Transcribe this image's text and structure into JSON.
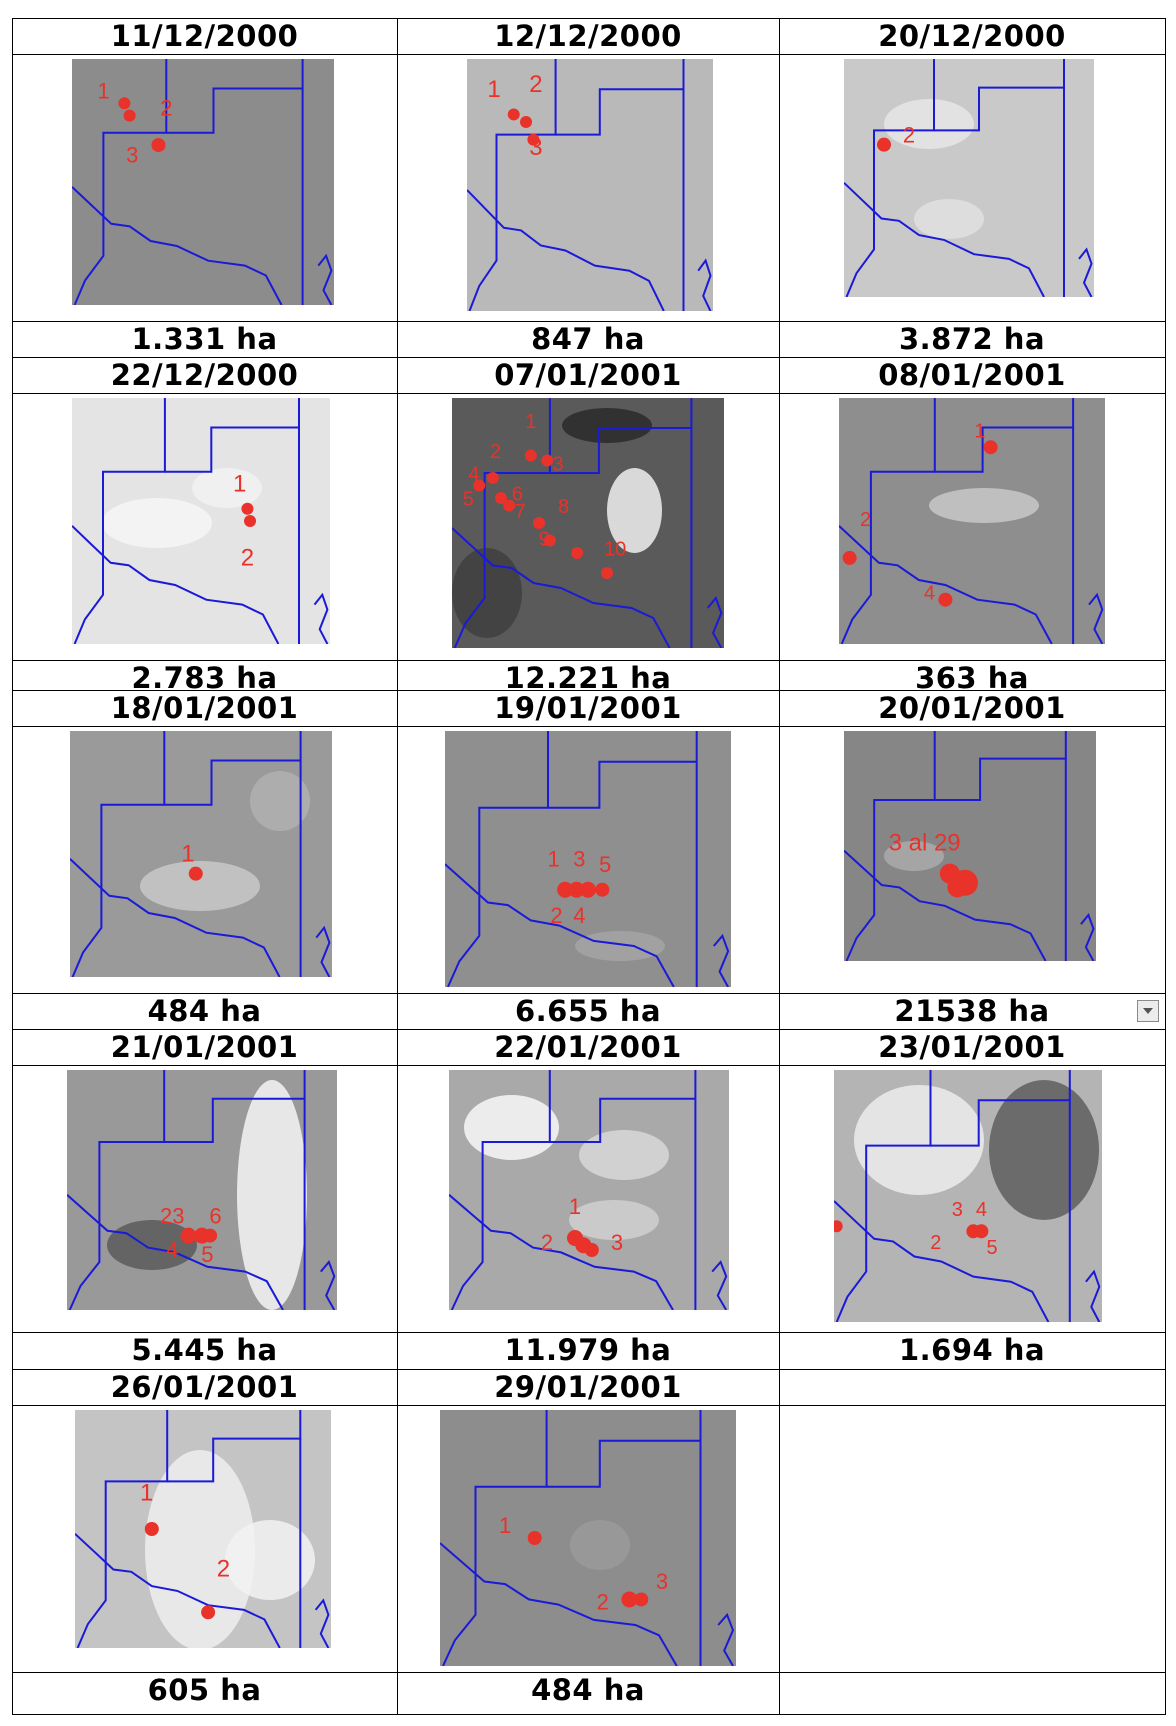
{
  "colors": {
    "fire": "#e8322a",
    "border": "#1a1ad8"
  },
  "rows": [
    {
      "panels": [
        {
          "date": "11/12/2000",
          "area": "1.331 ha",
          "labels": [
            "1",
            "2",
            "3"
          ]
        },
        {
          "date": "12/12/2000",
          "area": "847 ha",
          "labels": [
            "1",
            "2",
            "3"
          ]
        },
        {
          "date": "20/12/2000",
          "area": "3.872 ha",
          "labels": [
            "2"
          ]
        }
      ]
    },
    {
      "panels": [
        {
          "date": "22/12/2000",
          "area": "2.783 ha",
          "labels": [
            "1",
            "2"
          ]
        },
        {
          "date": "07/01/2001",
          "area": "12.221 ha",
          "labels": [
            "1",
            "2",
            "3",
            "4",
            "5",
            "6",
            "7",
            "8",
            "9",
            "10"
          ]
        },
        {
          "date": "08/01/2001",
          "area": "363 ha",
          "labels": [
            "1",
            "2",
            "4"
          ]
        }
      ]
    },
    {
      "panels": [
        {
          "date": "18/01/2001",
          "area": "484 ha",
          "labels": [
            "1"
          ]
        },
        {
          "date": "19/01/2001",
          "area": "6.655 ha",
          "labels": [
            "1",
            "3",
            "5",
            "2",
            "4"
          ]
        },
        {
          "date": "20/01/2001",
          "area": "21538 ha",
          "labels": [
            "3 al 29"
          ]
        }
      ]
    },
    {
      "panels": [
        {
          "date": "21/01/2001",
          "area": "5.445 ha",
          "labels": [
            "23",
            "6",
            "4",
            "5"
          ]
        },
        {
          "date": "22/01/2001",
          "area": "11.979 ha",
          "labels": [
            "1",
            "2",
            "3"
          ]
        },
        {
          "date": "23/01/2001",
          "area": "1.694 ha",
          "labels": [
            "3",
            "4",
            "2",
            "5"
          ]
        }
      ]
    },
    {
      "panels": [
        {
          "date": "26/01/2001",
          "area": "605 ha",
          "labels": [
            "1",
            "2"
          ]
        },
        {
          "date": "29/01/2001",
          "area": "484 ha",
          "labels": [
            "1",
            "2",
            "3"
          ]
        }
      ]
    }
  ],
  "dropdown_icon": "chevron-down-icon"
}
